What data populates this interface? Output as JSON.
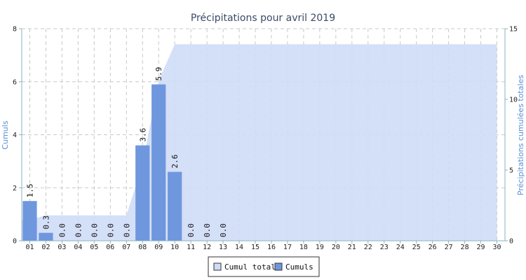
{
  "chart_data": {
    "type": "bar",
    "title": "Précipitations pour avril 2019",
    "ylabel": "Cumuls",
    "y2label": "Précipitations cumulées totales",
    "ylim": [
      0,
      8
    ],
    "y2lim": [
      0,
      15
    ],
    "yticks": [
      "0",
      "2",
      "4",
      "6",
      "8"
    ],
    "y2ticks": [
      "0",
      "5",
      "10",
      "15"
    ],
    "categories": [
      "01",
      "02",
      "03",
      "04",
      "05",
      "06",
      "07",
      "08",
      "09",
      "10",
      "11",
      "12",
      "13",
      "14",
      "15",
      "16",
      "17",
      "18",
      "19",
      "20",
      "21",
      "22",
      "23",
      "24",
      "25",
      "26",
      "27",
      "28",
      "29",
      "30"
    ],
    "series": [
      {
        "name": "Cumuls",
        "type": "bar",
        "axis": "left",
        "color": "#6f97de",
        "values": [
          1.5,
          0.3,
          0.0,
          0.0,
          0.0,
          0.0,
          0.0,
          3.6,
          5.9,
          2.6,
          0.0,
          0.0,
          0.0,
          null,
          null,
          null,
          null,
          null,
          null,
          null,
          null,
          null,
          null,
          null,
          null,
          null,
          null,
          null,
          null,
          null
        ],
        "data_labels": [
          "1.5",
          "0.3",
          "0.0",
          "0.0",
          "0.0",
          "0.0",
          "0.0",
          "3.6",
          "5.9",
          "2.6",
          "0.0",
          "0.0",
          "0.0"
        ]
      },
      {
        "name": "Cumul total",
        "type": "area",
        "axis": "right",
        "color": "#cfdcf7",
        "values": [
          1.5,
          1.8,
          1.8,
          1.8,
          1.8,
          1.8,
          1.8,
          5.4,
          11.3,
          13.9,
          13.9,
          13.9,
          13.9,
          13.9,
          13.9,
          13.9,
          13.9,
          13.9,
          13.9,
          13.9,
          13.9,
          13.9,
          13.9,
          13.9,
          13.9,
          13.9,
          13.9,
          13.9,
          13.9,
          13.9
        ]
      }
    ],
    "grid": true,
    "legend": {
      "position": "bottom",
      "items": [
        "Cumul total",
        "Cumuls"
      ]
    }
  }
}
